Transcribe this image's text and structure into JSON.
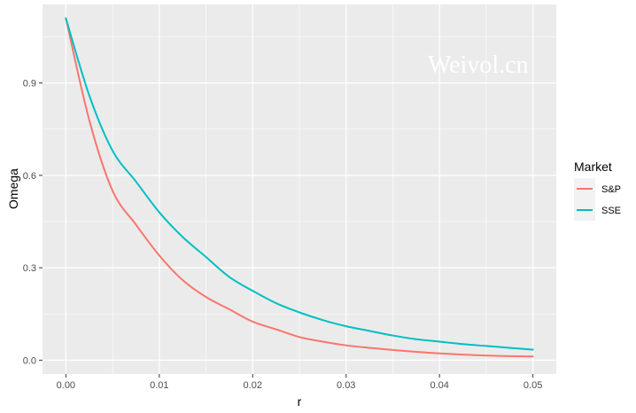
{
  "chart_data": {
    "type": "line",
    "xlabel": "r",
    "ylabel": "Omega",
    "xlim": [
      -0.0025,
      0.0525
    ],
    "ylim": [
      -0.045,
      1.155
    ],
    "x_ticks": [
      0,
      0.01,
      0.02,
      0.03,
      0.04,
      0.05
    ],
    "x_tick_labels": [
      "0.00",
      "0.01",
      "0.02",
      "0.03",
      "0.04",
      "0.05"
    ],
    "y_ticks": [
      0,
      0.3,
      0.6,
      0.9
    ],
    "y_tick_labels": [
      "0.0",
      "0.3",
      "0.6",
      "0.9"
    ],
    "grid": true,
    "legend": {
      "title": "Market",
      "position": "right"
    },
    "watermark": "Weivol.cn",
    "x": [
      0,
      0.0025,
      0.005,
      0.0075,
      0.01,
      0.0125,
      0.015,
      0.0175,
      0.02,
      0.0225,
      0.025,
      0.0275,
      0.03,
      0.0325,
      0.035,
      0.0375,
      0.04,
      0.0425,
      0.045,
      0.0475,
      0.05
    ],
    "series": [
      {
        "name": "S&P",
        "color": "#F8766D",
        "values": [
          1.11,
          0.78,
          0.55,
          0.44,
          0.34,
          0.26,
          0.205,
          0.165,
          0.125,
          0.1,
          0.075,
          0.06,
          0.048,
          0.04,
          0.033,
          0.027,
          0.022,
          0.018,
          0.015,
          0.013,
          0.012
        ]
      },
      {
        "name": "SSE",
        "color": "#00BFC4",
        "values": [
          1.11,
          0.86,
          0.68,
          0.58,
          0.48,
          0.4,
          0.335,
          0.27,
          0.225,
          0.185,
          0.155,
          0.13,
          0.11,
          0.095,
          0.08,
          0.068,
          0.06,
          0.052,
          0.046,
          0.04,
          0.034
        ]
      }
    ]
  }
}
